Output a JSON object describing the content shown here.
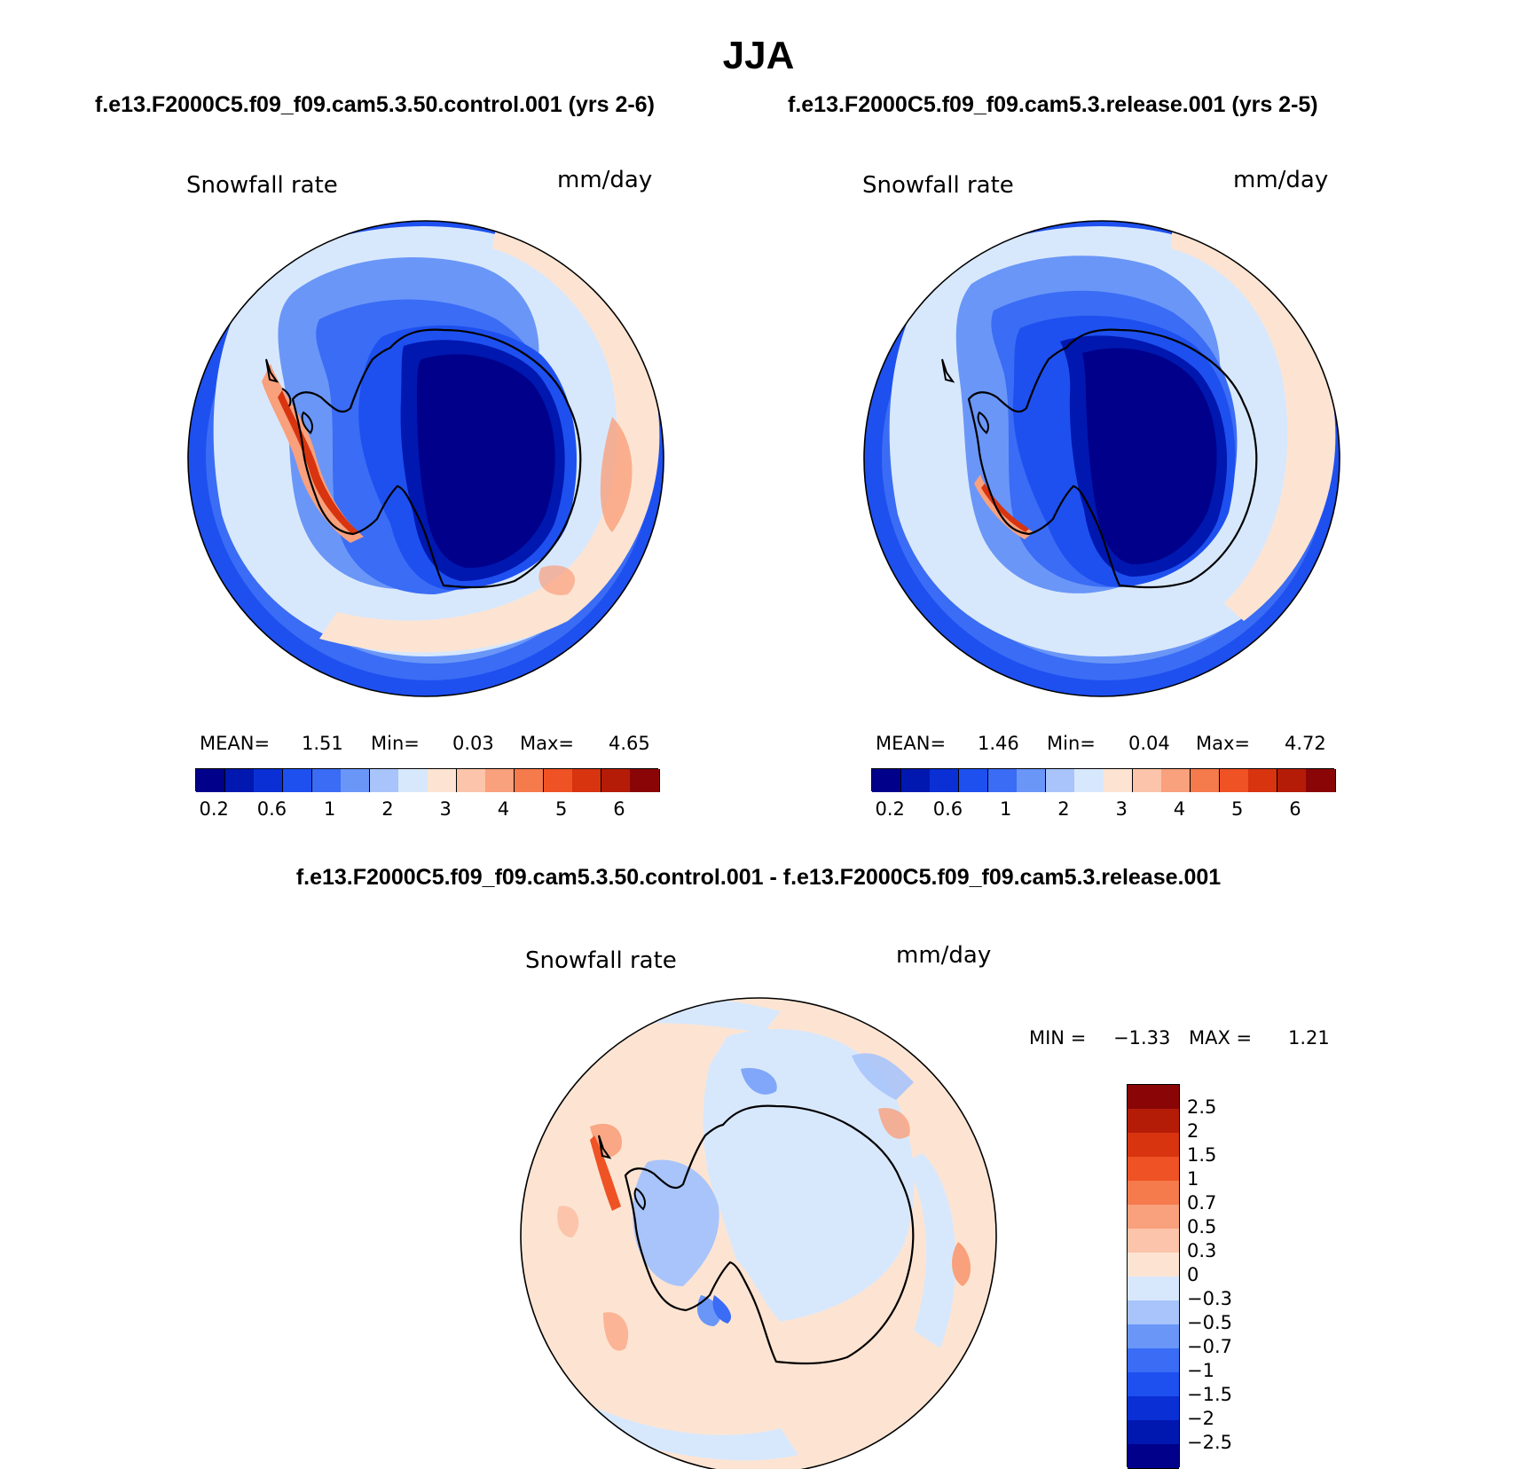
{
  "figure": {
    "season": "JJA",
    "left_case_title": "f.e13.F2000C5.f09_f09.cam5.3.50.control.001 (yrs 2-6)",
    "right_case_title": "f.e13.F2000C5.f09_f09.cam5.3.release.001 (yrs 2-5)",
    "diff_title": "f.e13.F2000C5.f09_f09.cam5.3.50.control.001 - f.e13.F2000C5.f09_f09.cam5.3.release.001"
  },
  "panels": [
    {
      "variable": "Snowfall rate",
      "units": "mm/day",
      "mean_label": "MEAN=",
      "mean": "1.51",
      "min_label": "Min=",
      "min": "0.03",
      "max_label": "Max=",
      "max": "4.65"
    },
    {
      "variable": "Snowfall rate",
      "units": "mm/day",
      "mean_label": "MEAN=",
      "mean": "1.46",
      "min_label": "Min=",
      "min": "0.04",
      "max_label": "Max=",
      "max": "4.72"
    }
  ],
  "diff_panel": {
    "variable": "Snowfall rate",
    "units": "mm/day",
    "min_label": "MIN =",
    "min": "−1.33",
    "max_label": "MAX =",
    "max": "1.21"
  },
  "colorbars": {
    "abs_colors": [
      "#00008b",
      "#0018b0",
      "#0a30d5",
      "#1e50f0",
      "#3a6cf5",
      "#6a96f8",
      "#a8c4fb",
      "#d8e8fc",
      "#fde4d2",
      "#fcc4aa",
      "#f9a07c",
      "#f57a4c",
      "#ef5224",
      "#d83410",
      "#b51c08",
      "#8a0606"
    ],
    "abs_ticks": [
      "0.2",
      "0.6",
      "1",
      "2",
      "3",
      "4",
      "5",
      "6"
    ],
    "diff_colors": [
      "#8a0606",
      "#b51c08",
      "#d83410",
      "#ef5224",
      "#f57a4c",
      "#f9a07c",
      "#fcc4aa",
      "#fde4d2",
      "#d8e8fc",
      "#a8c4fb",
      "#6a96f8",
      "#3a6cf5",
      "#1e50f0",
      "#0a30d5",
      "#0018b0",
      "#00008b"
    ],
    "diff_ticks": [
      "2.5",
      "2",
      "1.5",
      "1",
      "0.7",
      "0.5",
      "0.3",
      "0",
      "−0.3",
      "−0.5",
      "−0.7",
      "−1",
      "−1.5",
      "−2",
      "−2.5"
    ]
  },
  "map_palette": {
    "deep": "#00008b",
    "dark": "#0018b0",
    "blue": "#1e50f0",
    "mid": "#3a6cf5",
    "light": "#6a96f8",
    "pale": "#a8c4fb",
    "faint": "#d8e8fc",
    "peach": "#fde4d2",
    "salmon": "#f9a07c",
    "orange": "#ef5224",
    "red": "#b51c08"
  }
}
